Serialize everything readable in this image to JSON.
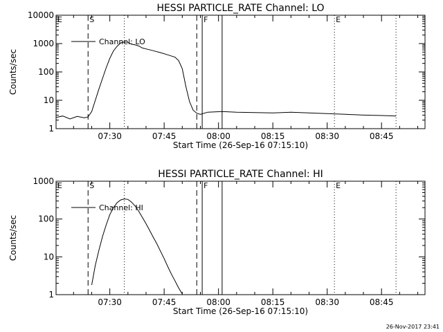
{
  "chart_data": [
    {
      "type": "line",
      "title": "HESSI PARTICLE_RATE Channel: LO",
      "xlabel": "Start Time (26-Sep-16 07:15:10)",
      "ylabel": "Counts/sec",
      "y_scale": "log",
      "ylim": [
        1,
        10000
      ],
      "xlim": [
        "07:15:10",
        "08:57:00"
      ],
      "grid": false,
      "legend_position": "top-left",
      "x_ticks": [
        "07:30",
        "07:45",
        "08:00",
        "08:15",
        "08:30",
        "08:45"
      ],
      "y_ticks": [
        "1",
        "10",
        "100",
        "1000",
        "10000"
      ],
      "markers": [
        {
          "label": "E",
          "time": "07:15:10",
          "style": "dashed"
        },
        {
          "label": "S",
          "time": "07:24:00",
          "style": "dashed"
        },
        {
          "label": "",
          "time": "07:34:00",
          "style": "dotted"
        },
        {
          "label": "",
          "time": "07:54:00",
          "style": "dashed"
        },
        {
          "label": "F",
          "time": "07:55:30",
          "style": "solid"
        },
        {
          "label": "",
          "time": "08:01:00",
          "style": "solid"
        },
        {
          "label": "E",
          "time": "08:32:00",
          "style": "dotted"
        },
        {
          "label": "",
          "time": "08:49:00",
          "style": "dotted"
        }
      ],
      "series": [
        {
          "name": "Channel: LO",
          "x": [
            "07:15:10",
            "07:17:00",
            "07:19:00",
            "07:21:00",
            "07:23:00",
            "07:24:00",
            "07:25:00",
            "07:26:00",
            "07:27:00",
            "07:28:00",
            "07:29:00",
            "07:30:00",
            "07:31:00",
            "07:32:00",
            "07:33:00",
            "07:34:00",
            "07:35:00",
            "07:36:00",
            "07:37:00",
            "07:38:00",
            "07:39:00",
            "07:40:00",
            "07:42:00",
            "07:44:00",
            "07:46:00",
            "07:48:00",
            "07:49:00",
            "07:50:00",
            "07:51:00",
            "07:52:00",
            "07:53:00",
            "07:54:00",
            "07:55:00",
            "07:57:00",
            "07:59:00",
            "08:01:00",
            "08:05:00",
            "08:10:00",
            "08:15:00",
            "08:20:00",
            "08:25:00",
            "08:30:00",
            "08:35:00",
            "08:40:00",
            "08:45:00",
            "08:49:00"
          ],
          "values": [
            2.5,
            2.8,
            2.2,
            2.7,
            2.4,
            2.6,
            4,
            10,
            25,
            60,
            140,
            300,
            550,
            800,
            1050,
            1150,
            1100,
            950,
            900,
            820,
            700,
            650,
            560,
            480,
            400,
            330,
            250,
            130,
            30,
            9,
            4.5,
            3.5,
            3.2,
            3.8,
            3.9,
            4,
            3.8,
            3.7,
            3.6,
            3.8,
            3.6,
            3.4,
            3.2,
            3.0,
            2.9,
            2.8
          ]
        }
      ]
    },
    {
      "type": "line",
      "title": "HESSI PARTICLE_RATE Channel: HI",
      "xlabel": "Start Time (26-Sep-16 07:15:10)",
      "ylabel": "Counts/sec",
      "y_scale": "log",
      "ylim": [
        1,
        1000
      ],
      "xlim": [
        "07:15:10",
        "08:57:00"
      ],
      "grid": false,
      "legend_position": "top-left",
      "x_ticks": [
        "07:30",
        "07:45",
        "08:00",
        "08:15",
        "08:30",
        "08:45"
      ],
      "y_ticks": [
        "1",
        "10",
        "100",
        "1000"
      ],
      "markers": [
        {
          "label": "E",
          "time": "07:15:10",
          "style": "dashed"
        },
        {
          "label": "S",
          "time": "07:24:00",
          "style": "dashed"
        },
        {
          "label": "",
          "time": "07:34:00",
          "style": "dotted"
        },
        {
          "label": "",
          "time": "07:54:00",
          "style": "dashed"
        },
        {
          "label": "F",
          "time": "07:55:30",
          "style": "solid"
        },
        {
          "label": "",
          "time": "08:01:00",
          "style": "solid"
        },
        {
          "label": "E",
          "time": "08:32:00",
          "style": "dotted"
        },
        {
          "label": "",
          "time": "08:49:00",
          "style": "dotted"
        }
      ],
      "series": [
        {
          "name": "Channel: HI",
          "x": [
            "07:25:00",
            "07:26:00",
            "07:27:00",
            "07:28:00",
            "07:29:00",
            "07:30:00",
            "07:31:00",
            "07:32:00",
            "07:33:00",
            "07:34:00",
            "07:35:00",
            "07:36:00",
            "07:37:00",
            "07:38:00",
            "07:39:00",
            "07:40:00",
            "07:41:00",
            "07:42:00",
            "07:43:00",
            "07:44:00",
            "07:45:00",
            "07:46:00",
            "07:47:00",
            "07:48:00",
            "07:49:00",
            "07:50:00"
          ],
          "values": [
            1.8,
            6,
            15,
            35,
            70,
            130,
            200,
            270,
            320,
            340,
            330,
            280,
            220,
            160,
            110,
            75,
            50,
            33,
            22,
            14,
            9,
            5.5,
            3.5,
            2.3,
            1.5,
            1.05
          ]
        }
      ]
    }
  ],
  "footer": {
    "timestamp": "26-Nov-2017 23:41"
  }
}
